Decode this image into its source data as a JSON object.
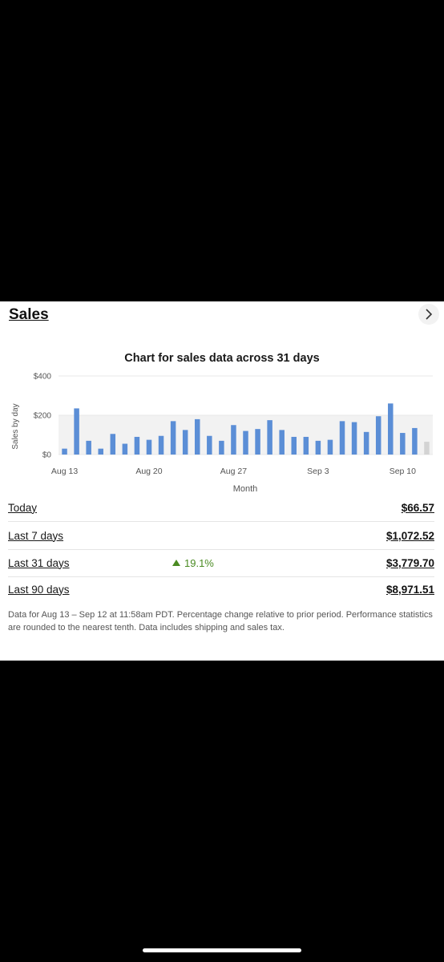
{
  "card": {
    "title": "Sales",
    "chevron_icon": "chevron-right-icon",
    "chart_title": "Chart for sales data across 31 days"
  },
  "chart_data": {
    "type": "bar",
    "title": "Chart for sales data across 31 days",
    "xlabel": "Month",
    "ylabel": "Sales by day",
    "ylim": [
      0,
      400
    ],
    "y_ticks": [
      "$0",
      "$200",
      "$400"
    ],
    "x_tick_labels": [
      {
        "label": "Aug 13",
        "index": 0
      },
      {
        "label": "Aug 20",
        "index": 7
      },
      {
        "label": "Aug 27",
        "index": 14
      },
      {
        "label": "Sep 3",
        "index": 21
      },
      {
        "label": "Sep 10",
        "index": 28
      }
    ],
    "categories": [
      "Aug 13",
      "Aug 14",
      "Aug 15",
      "Aug 16",
      "Aug 17",
      "Aug 18",
      "Aug 19",
      "Aug 20",
      "Aug 21",
      "Aug 22",
      "Aug 23",
      "Aug 24",
      "Aug 25",
      "Aug 26",
      "Aug 27",
      "Aug 28",
      "Aug 29",
      "Aug 30",
      "Aug 31",
      "Sep 1",
      "Sep 2",
      "Sep 3",
      "Sep 4",
      "Sep 5",
      "Sep 6",
      "Sep 7",
      "Sep 8",
      "Sep 9",
      "Sep 10",
      "Sep 11",
      "Sep 12"
    ],
    "values": [
      30,
      235,
      70,
      30,
      105,
      55,
      90,
      75,
      95,
      170,
      125,
      180,
      95,
      70,
      150,
      120,
      130,
      175,
      125,
      90,
      90,
      70,
      75,
      170,
      165,
      115,
      195,
      260,
      110,
      135,
      65
    ],
    "bar_color": "#5b8ed6",
    "partial_bar_color": "#d3d3d3",
    "highlight_band": [
      0,
      200
    ],
    "highlight_band_color": "#f2f2f2",
    "grid": true
  },
  "stats": {
    "rows": [
      {
        "label": "Today",
        "value": "$66.57"
      },
      {
        "label": "Last 7 days",
        "value": "$1,072.52"
      },
      {
        "label": "Last 31 days",
        "value": "$3,779.70",
        "change": "19.1%"
      },
      {
        "label": "Last 90 days",
        "value": "$8,971.51"
      }
    ],
    "change_color": "#4a8b22"
  },
  "footnote": "Data for Aug 13 – Sep 12 at 11:58am PDT. Percentage change relative to prior period. Performance statistics are rounded to the nearest tenth. Data includes shipping and sales tax."
}
